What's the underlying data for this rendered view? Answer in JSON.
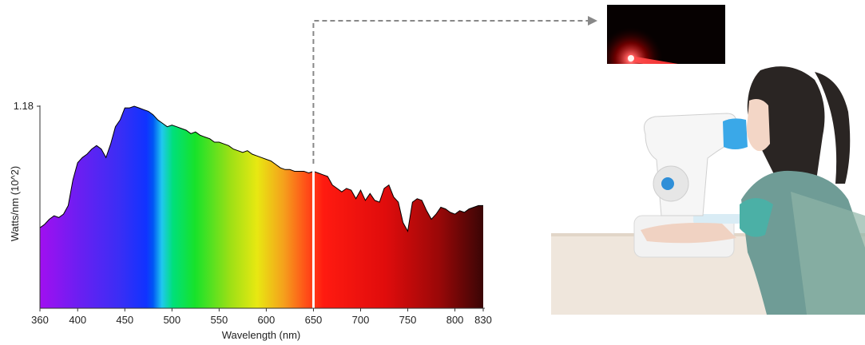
{
  "chart_data": {
    "type": "area",
    "title": "",
    "xlabel": "Wavelength (nm)",
    "ylabel": "Watts/nm (10^2)",
    "xlim": [
      360,
      830
    ],
    "ylim": [
      0,
      1.18
    ],
    "x_ticks": [
      360,
      400,
      450,
      500,
      550,
      600,
      650,
      700,
      750,
      800,
      830
    ],
    "y_ticks": [
      1.18
    ],
    "x": [
      360,
      365,
      370,
      375,
      380,
      385,
      390,
      395,
      400,
      405,
      410,
      415,
      420,
      425,
      430,
      435,
      440,
      445,
      450,
      455,
      460,
      465,
      470,
      475,
      480,
      485,
      490,
      495,
      500,
      505,
      510,
      515,
      520,
      525,
      530,
      535,
      540,
      545,
      550,
      555,
      560,
      565,
      570,
      575,
      580,
      585,
      590,
      595,
      600,
      605,
      610,
      615,
      620,
      625,
      630,
      635,
      640,
      645,
      650,
      655,
      660,
      665,
      670,
      675,
      680,
      685,
      690,
      695,
      700,
      705,
      710,
      715,
      720,
      725,
      730,
      735,
      740,
      745,
      750,
      755,
      760,
      765,
      770,
      775,
      780,
      785,
      790,
      795,
      800,
      805,
      810,
      815,
      820,
      825,
      830
    ],
    "y": [
      0.47,
      0.49,
      0.52,
      0.54,
      0.53,
      0.55,
      0.6,
      0.75,
      0.85,
      0.88,
      0.9,
      0.93,
      0.95,
      0.93,
      0.88,
      0.96,
      1.06,
      1.1,
      1.17,
      1.17,
      1.18,
      1.17,
      1.16,
      1.15,
      1.13,
      1.1,
      1.08,
      1.06,
      1.07,
      1.06,
      1.05,
      1.04,
      1.02,
      1.03,
      1.01,
      1.0,
      0.99,
      0.97,
      0.97,
      0.96,
      0.95,
      0.93,
      0.92,
      0.91,
      0.92,
      0.9,
      0.89,
      0.88,
      0.87,
      0.86,
      0.84,
      0.82,
      0.81,
      0.81,
      0.8,
      0.8,
      0.8,
      0.79,
      0.8,
      0.79,
      0.78,
      0.77,
      0.72,
      0.7,
      0.68,
      0.7,
      0.69,
      0.64,
      0.69,
      0.63,
      0.67,
      0.63,
      0.62,
      0.7,
      0.72,
      0.65,
      0.62,
      0.5,
      0.45,
      0.62,
      0.64,
      0.63,
      0.57,
      0.52,
      0.55,
      0.59,
      0.58,
      0.56,
      0.55,
      0.57,
      0.56,
      0.58,
      0.59,
      0.6,
      0.6
    ],
    "marker_wavelength": 650
  },
  "colors": {
    "axis": "#333333",
    "outline": "#000000",
    "arrow": "#888888",
    "laser": "#ff2020"
  },
  "icons": {
    "laser_photo": "red-laser-beam-image",
    "device_photo": "child-using-eye-device-image"
  }
}
